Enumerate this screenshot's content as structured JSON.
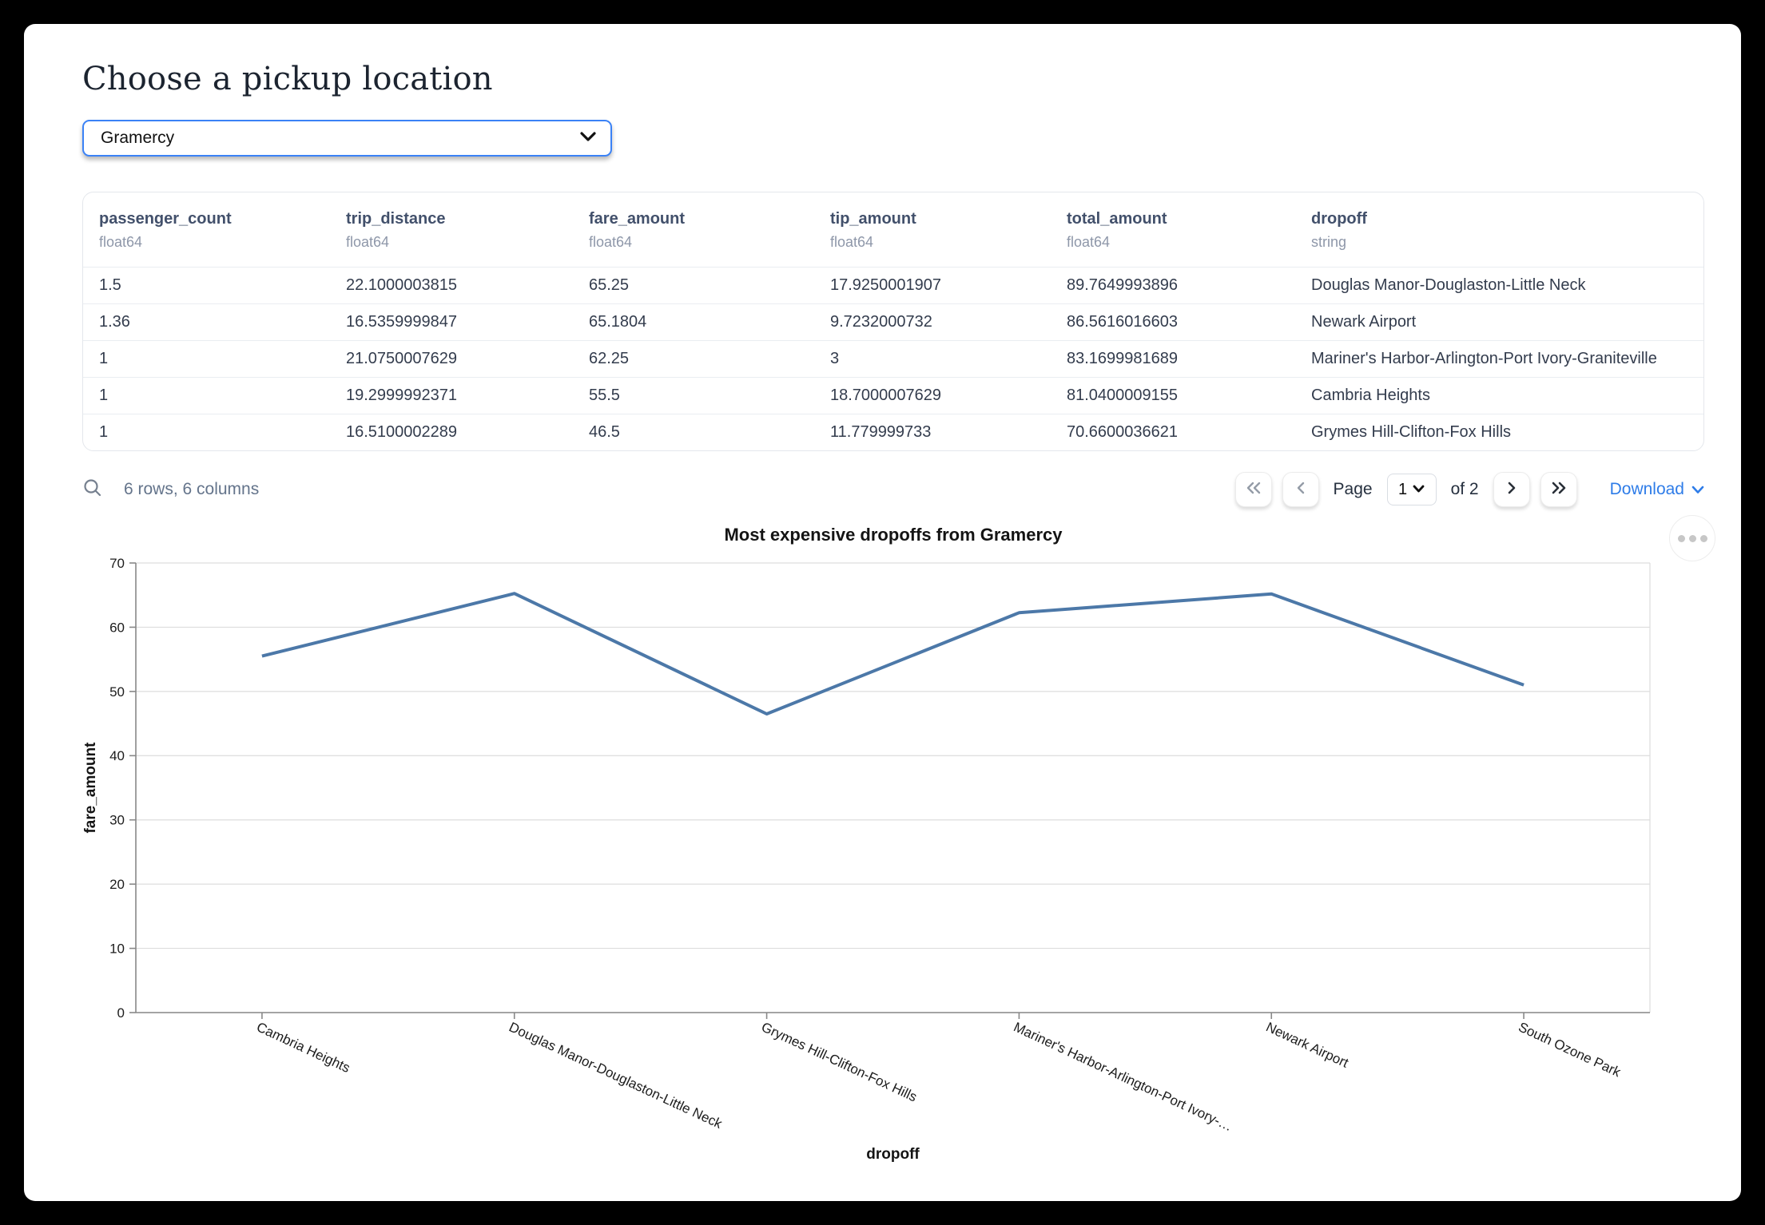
{
  "page": {
    "title": "Choose a pickup location"
  },
  "picker": {
    "value": "Gramercy"
  },
  "table": {
    "columns": [
      {
        "name": "passenger_count",
        "type": "float64"
      },
      {
        "name": "trip_distance",
        "type": "float64"
      },
      {
        "name": "fare_amount",
        "type": "float64"
      },
      {
        "name": "tip_amount",
        "type": "float64"
      },
      {
        "name": "total_amount",
        "type": "float64"
      },
      {
        "name": "dropoff",
        "type": "string"
      }
    ],
    "rows": [
      [
        "1.5",
        "22.1000003815",
        "65.25",
        "17.9250001907",
        "89.7649993896",
        "Douglas Manor-Douglaston-Little Neck"
      ],
      [
        "1.36",
        "16.5359999847",
        "65.1804",
        "9.7232000732",
        "86.5616016603",
        "Newark Airport"
      ],
      [
        "1",
        "21.0750007629",
        "62.25",
        "3",
        "83.1699981689",
        "Mariner's Harbor-Arlington-Port Ivory-Graniteville"
      ],
      [
        "1",
        "19.2999992371",
        "55.5",
        "18.7000007629",
        "81.0400009155",
        "Cambria Heights"
      ],
      [
        "1",
        "16.5100002289",
        "46.5",
        "11.779999733",
        "70.6600036621",
        "Grymes Hill-Clifton-Fox Hills"
      ]
    ],
    "footer": {
      "summary": "6 rows, 6 columns",
      "page_label": "Page",
      "page_value": "1",
      "of_label": "of 2",
      "download_label": "Download"
    }
  },
  "chart_data": {
    "type": "line",
    "title": "Most expensive dropoffs from Gramercy",
    "xlabel": "dropoff",
    "ylabel": "fare_amount",
    "categories": [
      "Cambria Heights",
      "Douglas Manor-Douglaston-Little Neck",
      "Grymes Hill-Clifton-Fox Hills",
      "Mariner's Harbor-Arlington-Port Ivory-…",
      "Newark Airport",
      "South Ozone Park"
    ],
    "values": [
      55.5,
      65.25,
      46.5,
      62.25,
      65.1804,
      51
    ],
    "ylim": [
      0,
      70
    ],
    "yticks": [
      0,
      10,
      20,
      30,
      40,
      50,
      60,
      70
    ],
    "grid": true,
    "legend": "none",
    "line_color": "#4c78a8",
    "label_angle_deg": 25
  },
  "icons": {
    "search": "magnifier",
    "chevron_down": "v-chevron",
    "first_page": "double-chevron-left",
    "prev_page": "chevron-left",
    "next_page": "chevron-right",
    "last_page": "double-chevron-right",
    "menu": "ellipsis-dots"
  },
  "colors": {
    "accent_blue": "#3b82f6",
    "download_blue": "#2e7ce8",
    "line_blue": "#4c78a8",
    "header_text": "#42506b",
    "muted_text": "#8e97a9",
    "grid_gray": "#dddddd",
    "axis_gray": "#888888"
  }
}
